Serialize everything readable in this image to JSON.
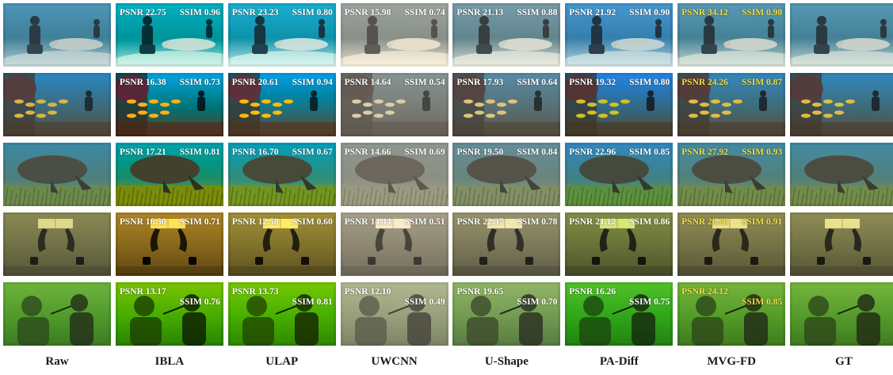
{
  "methods": [
    "Raw",
    "IBLA",
    "ULAP",
    "UWCNN",
    "U-Shape",
    "PA-Diff",
    "MVG-FD",
    "GT"
  ],
  "rows": [
    {
      "scene": "diver-with-shark",
      "palette": {
        "top": "#4e96b8",
        "mid": "#3f7f99",
        "bottom": "#b7cfd2",
        "accent": "#2b3b44"
      },
      "metrics": [
        null,
        {
          "psnr": "PSNR 22.75",
          "ssim": "SSIM 0.96"
        },
        {
          "psnr": "PSNR 23.23",
          "ssim": "SSIM 0.80"
        },
        {
          "psnr": "PSNR 15.98",
          "ssim": "SSIM 0.74"
        },
        {
          "psnr": "PSNR 21.13",
          "ssim": "SSIM 0.88"
        },
        {
          "psnr": "PSNR 21.92",
          "ssim": "SSIM 0.90"
        },
        {
          "psnr": "PSNR 34.12",
          "ssim": "SSIM 0.98"
        },
        null
      ]
    },
    {
      "scene": "reef-fish-and-diver",
      "palette": {
        "top": "#2a87c3",
        "mid": "#3c6a7a",
        "bottom": "#5a4a3a",
        "accent": "#d8b545"
      },
      "metrics": [
        null,
        {
          "psnr": "PSNR 16.38",
          "ssim": "SSIM 0.73"
        },
        {
          "psnr": "PSNR 20.61",
          "ssim": "SSIM 0.94"
        },
        {
          "psnr": "PSNR 14.64",
          "ssim": "SSIM 0.54"
        },
        {
          "psnr": "PSNR 17.93",
          "ssim": "SSIM 0.64"
        },
        {
          "psnr": "PSNR 19.32",
          "ssim": "SSIM 0.80"
        },
        {
          "psnr": "PSNR 24.26",
          "ssim": "SSIM 0.87"
        },
        null
      ]
    },
    {
      "scene": "manatee-seagrass",
      "palette": {
        "top": "#3b89a8",
        "mid": "#4c7f7c",
        "bottom": "#7c9457",
        "accent": "#4b4e44"
      },
      "metrics": [
        null,
        {
          "psnr": "PSNR 17.21",
          "ssim": "SSIM 0.81"
        },
        {
          "psnr": "PSNR 16.70",
          "ssim": "SSIM 0.67"
        },
        {
          "psnr": "PSNR 14.66",
          "ssim": "SSIM 0.69"
        },
        {
          "psnr": "PSNR 19.50",
          "ssim": "SSIM 0.84"
        },
        {
          "psnr": "PSNR 22.96",
          "ssim": "SSIM 0.85"
        },
        {
          "psnr": "PSNR 27.92",
          "ssim": "SSIM 0.93"
        },
        null
      ]
    },
    {
      "scene": "diver-hands-banknote",
      "palette": {
        "top": "#8a8a55",
        "mid": "#6e6f45",
        "bottom": "#565538",
        "accent": "#e3dc8a"
      },
      "metrics": [
        null,
        {
          "psnr": "PSNR 16.30",
          "ssim": "SSIM 0.71"
        },
        {
          "psnr": "PSNR 12.58",
          "ssim": "SSIM 0.60"
        },
        {
          "psnr": "PSNR 14.44",
          "ssim": "SSIM 0.51"
        },
        {
          "psnr": "PSNR 22.37",
          "ssim": "SSIM 0.78"
        },
        {
          "psnr": "PSNR 21.12",
          "ssim": "SSIM 0.86"
        },
        {
          "psnr": "PSNR 26.66",
          "ssim": "SSIM 0.91"
        },
        null
      ]
    },
    {
      "scene": "statue-and-divers",
      "palette": {
        "top": "#6fb23c",
        "mid": "#4e9a2a",
        "bottom": "#3d7a22",
        "accent": "#2e4a1d"
      },
      "metrics": [
        null,
        {
          "psnr": "PSNR 13.17",
          "ssim": "SSIM 0.76"
        },
        {
          "psnr": "PSNR 13.73",
          "ssim": "SSIM 0.81"
        },
        {
          "psnr": "PSNR 12.10",
          "ssim": "SSIM 0.49"
        },
        {
          "psnr": "PSNR 19.65",
          "ssim": "SSIM 0.70"
        },
        {
          "psnr": "PSNR 16.26",
          "ssim": "SSIM 0.75"
        },
        {
          "psnr": "PSNR 24.12",
          "ssim": "SSIM 0.85"
        },
        null
      ]
    }
  ],
  "best_method": "MVG-FD",
  "colors": {
    "metric_text": "#ffffff",
    "best_metric_text": "#f4dd45",
    "label_text": "#1a1a1a"
  }
}
